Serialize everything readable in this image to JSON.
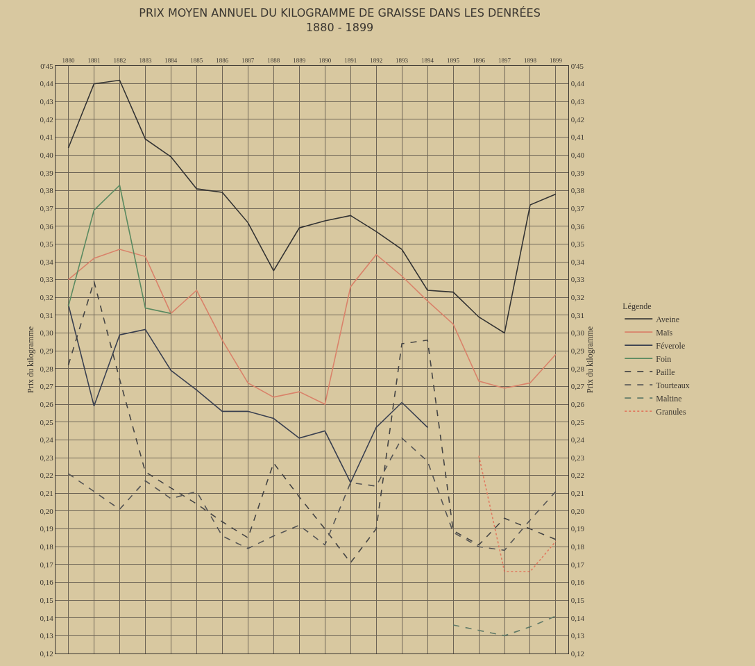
{
  "chart_data": {
    "type": "line",
    "title": "PRIX MOYEN ANNUEL DU KILOGRAMME DE GRAISSE DANS LES DENRÉES",
    "subtitle": "1880 - 1899",
    "ylabel": "Prix du kilogramme",
    "y2label": "Prix du kilogramme",
    "legend_title": "Légende",
    "categories": [
      "1880",
      "1881",
      "1882",
      "1883",
      "1884",
      "1885",
      "1886",
      "1887",
      "1888",
      "1889",
      "1890",
      "1891",
      "1892",
      "1893",
      "1894",
      "1895",
      "1896",
      "1897",
      "1898",
      "1899"
    ],
    "series": [
      {
        "name": "Aveine",
        "color": "#333333",
        "line_style": "solid",
        "values": [
          0.404,
          0.44,
          0.442,
          0.409,
          0.399,
          0.381,
          0.379,
          0.362,
          0.335,
          0.359,
          0.363,
          0.366,
          0.357,
          0.347,
          0.324,
          0.323,
          0.309,
          0.3,
          0.372,
          0.378
        ]
      },
      {
        "name": "Maïs",
        "color": "#d9826a",
        "line_style": "solid",
        "values": [
          0.33,
          0.342,
          0.347,
          0.343,
          0.311,
          0.324,
          0.296,
          0.272,
          0.264,
          0.267,
          0.26,
          0.326,
          0.344,
          0.332,
          0.318,
          0.305,
          0.273,
          0.269,
          0.272,
          0.288
        ]
      },
      {
        "name": "Féverole",
        "color": "#3a4050",
        "line_style": "solid",
        "values": [
          0.316,
          0.259,
          0.299,
          0.302,
          0.279,
          0.268,
          0.256,
          0.256,
          0.252,
          0.241,
          0.245,
          0.216,
          0.247,
          0.261,
          0.247,
          null,
          null,
          null,
          null,
          null
        ]
      },
      {
        "name": "Foin",
        "color": "#5a8a60",
        "line_style": "solid",
        "values": [
          0.315,
          0.369,
          0.383,
          0.314,
          0.311,
          null,
          null,
          null,
          null,
          null,
          null,
          null,
          null,
          null,
          null,
          null,
          null,
          null,
          null,
          null
        ]
      },
      {
        "name": "Paille",
        "color": "#444444",
        "line_style": "dashed",
        "values": [
          0.282,
          0.329,
          0.274,
          0.222,
          0.213,
          0.204,
          0.194,
          0.185,
          0.227,
          0.208,
          0.19,
          0.171,
          0.19,
          0.294,
          0.296,
          0.189,
          0.181,
          0.196,
          0.19,
          0.184
        ]
      },
      {
        "name": "Tourteaux",
        "color": "#555555",
        "line_style": "dashed",
        "values": [
          0.221,
          0.211,
          0.201,
          0.217,
          0.207,
          0.211,
          0.186,
          0.179,
          0.186,
          0.192,
          0.181,
          0.216,
          0.214,
          0.241,
          0.228,
          0.188,
          0.18,
          0.178,
          0.195,
          0.211
        ]
      },
      {
        "name": "Maltine",
        "color": "#607a68",
        "line_style": "dashed",
        "values": [
          null,
          null,
          null,
          null,
          null,
          null,
          null,
          null,
          null,
          null,
          null,
          null,
          null,
          null,
          null,
          0.136,
          0.133,
          0.13,
          0.135,
          0.141
        ]
      },
      {
        "name": "Granules",
        "color": "#e07a60",
        "line_style": "dotted",
        "values": [
          null,
          null,
          null,
          null,
          null,
          null,
          null,
          null,
          null,
          null,
          null,
          null,
          null,
          null,
          null,
          null,
          0.231,
          0.166,
          0.166,
          0.183
        ]
      }
    ],
    "ylim": [
      0.12,
      0.45
    ],
    "yticks": [
      {
        "value": 0.12,
        "label": "0,12"
      },
      {
        "value": 0.13,
        "label": "0,13"
      },
      {
        "value": 0.14,
        "label": "0,14"
      },
      {
        "value": 0.15,
        "label": "0,15"
      },
      {
        "value": 0.16,
        "label": "0,16"
      },
      {
        "value": 0.17,
        "label": "0,17"
      },
      {
        "value": 0.18,
        "label": "0,18"
      },
      {
        "value": 0.19,
        "label": "0,19"
      },
      {
        "value": 0.2,
        "label": "0,20"
      },
      {
        "value": 0.21,
        "label": "0,21"
      },
      {
        "value": 0.22,
        "label": "0,22"
      },
      {
        "value": 0.23,
        "label": "0,23"
      },
      {
        "value": 0.24,
        "label": "0,24"
      },
      {
        "value": 0.25,
        "label": "0,25"
      },
      {
        "value": 0.26,
        "label": "0,26"
      },
      {
        "value": 0.27,
        "label": "0,27"
      },
      {
        "value": 0.28,
        "label": "0,28"
      },
      {
        "value": 0.29,
        "label": "0,29"
      },
      {
        "value": 0.3,
        "label": "0,30"
      },
      {
        "value": 0.31,
        "label": "0,31"
      },
      {
        "value": 0.32,
        "label": "0,32"
      },
      {
        "value": 0.33,
        "label": "0,33"
      },
      {
        "value": 0.34,
        "label": "0,34"
      },
      {
        "value": 0.35,
        "label": "0,35"
      },
      {
        "value": 0.36,
        "label": "0,36"
      },
      {
        "value": 0.37,
        "label": "0,37"
      },
      {
        "value": 0.38,
        "label": "0,38"
      },
      {
        "value": 0.39,
        "label": "0,39"
      },
      {
        "value": 0.4,
        "label": "0,40"
      },
      {
        "value": 0.41,
        "label": "0,41"
      },
      {
        "value": 0.42,
        "label": "0,42"
      },
      {
        "value": 0.43,
        "label": "0,43"
      },
      {
        "value": 0.44,
        "label": "0,44"
      },
      {
        "value": 0.45,
        "label": "0'45"
      }
    ],
    "y2lim": [
      0.12,
      0.45
    ],
    "y2ticks": [
      {
        "value": 0.12,
        "label": "0,12"
      },
      {
        "value": 0.13,
        "label": "0,13"
      },
      {
        "value": 0.14,
        "label": "0,14"
      },
      {
        "value": 0.15,
        "label": "0,15"
      },
      {
        "value": 0.16,
        "label": "0,16"
      },
      {
        "value": 0.17,
        "label": "0,17"
      },
      {
        "value": 0.18,
        "label": "0,18"
      },
      {
        "value": 0.19,
        "label": "0,19"
      },
      {
        "value": 0.2,
        "label": "0,20"
      },
      {
        "value": 0.21,
        "label": "0,21"
      },
      {
        "value": 0.22,
        "label": "0,22"
      },
      {
        "value": 0.23,
        "label": "0,23"
      },
      {
        "value": 0.24,
        "label": "0,24"
      },
      {
        "value": 0.25,
        "label": "0,25"
      },
      {
        "value": 0.26,
        "label": "0,26"
      },
      {
        "value": 0.27,
        "label": "0,27"
      },
      {
        "value": 0.28,
        "label": "0,28"
      },
      {
        "value": 0.29,
        "label": "0,29"
      },
      {
        "value": 0.3,
        "label": "0,30"
      },
      {
        "value": 0.31,
        "label": "0,31"
      },
      {
        "value": 0.32,
        "label": "0,32"
      },
      {
        "value": 0.33,
        "label": "0,33"
      },
      {
        "value": 0.34,
        "label": "0,34"
      },
      {
        "value": 0.35,
        "label": "0,35"
      },
      {
        "value": 0.36,
        "label": "0,36"
      },
      {
        "value": 0.37,
        "label": "0,37"
      },
      {
        "value": 0.38,
        "label": "0,38"
      },
      {
        "value": 0.39,
        "label": "0,39"
      },
      {
        "value": 0.4,
        "label": "0,40"
      },
      {
        "value": 0.41,
        "label": "0,41"
      },
      {
        "value": 0.42,
        "label": "0,42"
      },
      {
        "value": 0.43,
        "label": "0,43"
      },
      {
        "value": 0.44,
        "label": "0,44"
      },
      {
        "value": 0.45,
        "label": "0'45"
      }
    ],
    "grid": true,
    "legend": "right",
    "marker": "none"
  }
}
